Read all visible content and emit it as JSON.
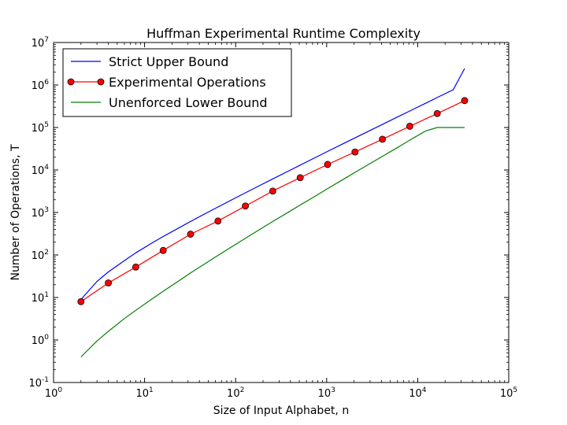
{
  "chart_data": {
    "type": "line",
    "title": "Huffman Experimental Runtime Complexity",
    "xlabel": "Size of Input Alphabet, n",
    "ylabel": "Number of Operations, T",
    "xscale": "log",
    "yscale": "log",
    "xlim": [
      1,
      100000
    ],
    "ylim": [
      0.1,
      10000000
    ],
    "x_ticks": [
      {
        "base": "10",
        "exp": "0",
        "value": 1
      },
      {
        "base": "10",
        "exp": "1",
        "value": 10
      },
      {
        "base": "10",
        "exp": "2",
        "value": 100
      },
      {
        "base": "10",
        "exp": "3",
        "value": 1000
      },
      {
        "base": "10",
        "exp": "4",
        "value": 10000
      },
      {
        "base": "10",
        "exp": "5",
        "value": 100000
      }
    ],
    "y_ticks": [
      {
        "base": "10",
        "exp": "-1",
        "value": 0.1
      },
      {
        "base": "10",
        "exp": "0",
        "value": 1
      },
      {
        "base": "10",
        "exp": "1",
        "value": 10
      },
      {
        "base": "10",
        "exp": "2",
        "value": 100
      },
      {
        "base": "10",
        "exp": "3",
        "value": 1000
      },
      {
        "base": "10",
        "exp": "4",
        "value": 10000
      },
      {
        "base": "10",
        "exp": "5",
        "value": 100000
      },
      {
        "base": "10",
        "exp": "6",
        "value": 1000000
      },
      {
        "base": "10",
        "exp": "7",
        "value": 10000000
      }
    ],
    "legend_position": "top-left",
    "grid": false,
    "series": [
      {
        "name": "Strict Upper Bound",
        "color": "#0000ff",
        "marker": false,
        "x": [
          2,
          3,
          4,
          6,
          8,
          12,
          16,
          24,
          32,
          48,
          64,
          96,
          128,
          192,
          256,
          384,
          512,
          768,
          1024,
          1536,
          2048,
          3072,
          4096,
          6144,
          8192,
          12288,
          16384,
          24576,
          32768
        ],
        "y": [
          9,
          24,
          40,
          74,
          112,
          190,
          272,
          440,
          616,
          980,
          1350,
          2120,
          2900,
          4520,
          6170,
          9560,
          13000,
          20100,
          27300,
          42000,
          56900,
          87300,
          118000,
          181000,
          245000,
          374000,
          507000,
          775000,
          2450000
        ]
      },
      {
        "name": "Experimental Operations",
        "color": "#ff0000",
        "marker": true,
        "x": [
          2,
          4,
          8,
          16,
          32,
          64,
          128,
          256,
          512,
          1024,
          2048,
          4096,
          8192,
          16384,
          32768
        ],
        "y": [
          8,
          22,
          52,
          128,
          310,
          630,
          1420,
          3200,
          6600,
          13500,
          26500,
          53000,
          107000,
          213000,
          430000
        ]
      },
      {
        "name": "Unenforced Lower Bound",
        "color": "#008000",
        "marker": false,
        "x": [
          2,
          3,
          4,
          6,
          8,
          12,
          16,
          24,
          32,
          48,
          64,
          96,
          128,
          192,
          256,
          384,
          512,
          768,
          1024,
          1536,
          2048,
          3072,
          4096,
          6144,
          8192,
          12288,
          16384,
          24576,
          32768
        ],
        "y": [
          0.4,
          0.95,
          1.6,
          3.2,
          5,
          9.2,
          14,
          25,
          38,
          66,
          98,
          168,
          248,
          420,
          615,
          1030,
          1500,
          2500,
          3650,
          6060,
          8800,
          14600,
          21000,
          34800,
          50500,
          83400,
          100000,
          100000,
          100000
        ]
      }
    ]
  }
}
